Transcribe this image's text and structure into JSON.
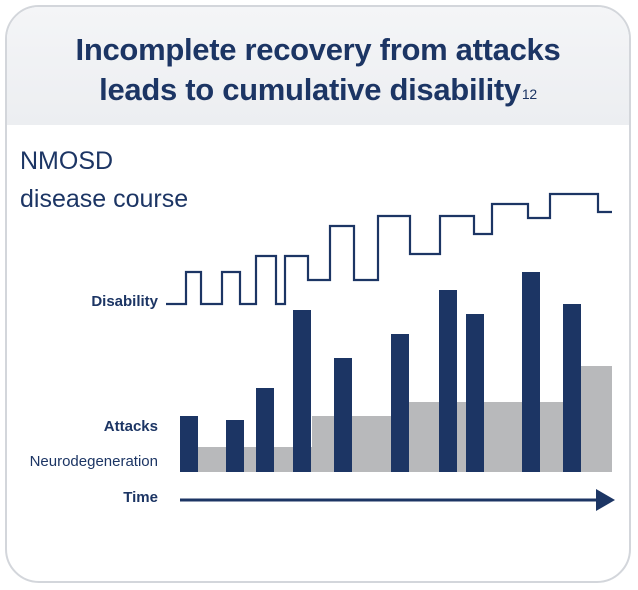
{
  "header": {
    "title_line1": "Incomplete recovery from attacks",
    "title_line2": "leads to cumulative disability",
    "title_superscript": "12"
  },
  "subtitle": {
    "line1": "NMOSD",
    "line2": "disease course"
  },
  "labels": {
    "disability": "Disability",
    "attacks": "Attacks",
    "neurodegeneration": "Neurodegeneration",
    "time": "Time"
  },
  "colors": {
    "navy": "#1c3564",
    "grey": "#b8b9bb",
    "border": "#d3d6db"
  },
  "chart_data": {
    "type": "bar",
    "series": [
      {
        "values": [
          0.28,
          0.26,
          0.42,
          0.81,
          0.57,
          0.69,
          0.91,
          0.79,
          1.0,
          0.84
        ]
      },
      {
        "values": [
          0.125,
          0.125,
          0.125,
          0.125,
          0.28,
          0.28,
          0.35,
          0.35,
          0.35,
          0.35,
          0.53
        ]
      }
    ]
  }
}
